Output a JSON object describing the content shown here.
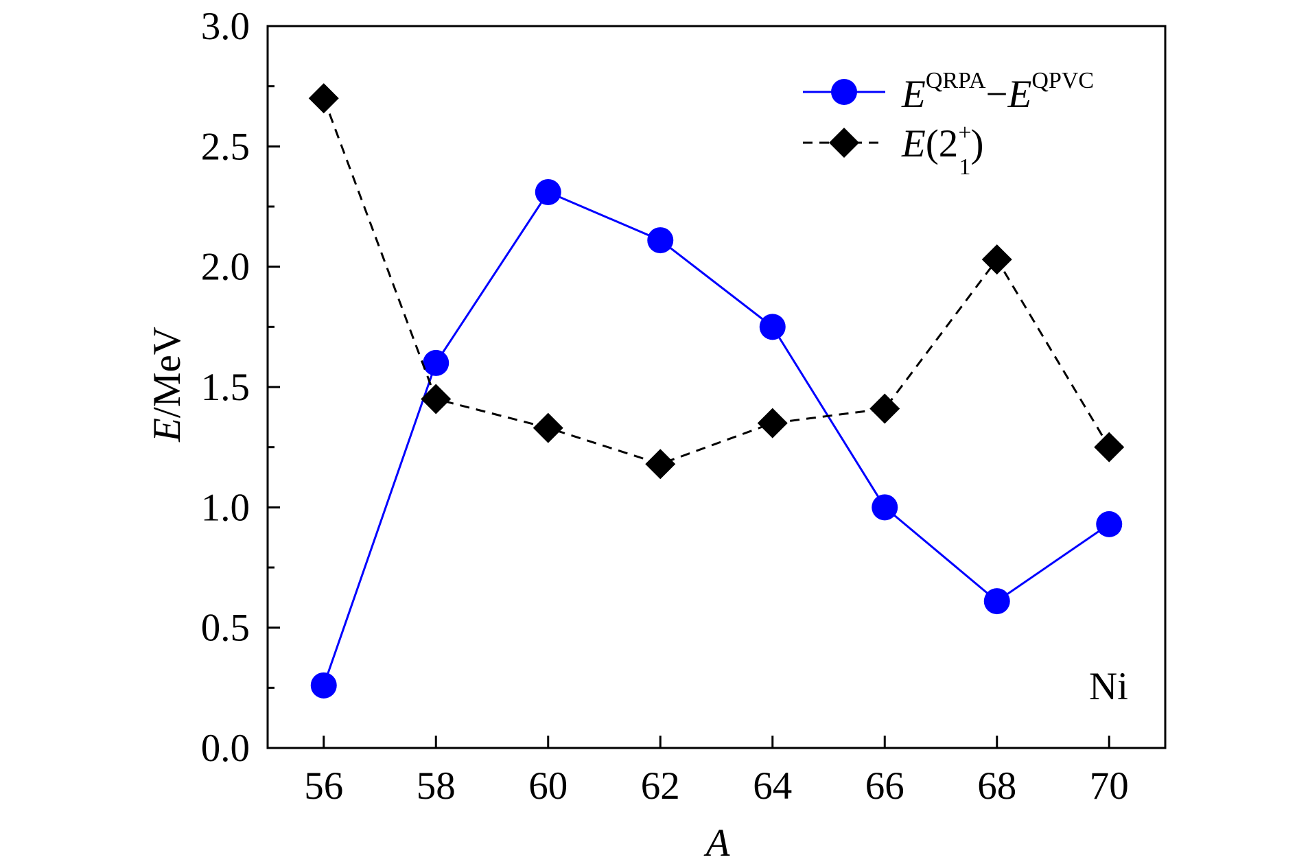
{
  "chart_data": {
    "type": "line",
    "x": [
      56,
      58,
      60,
      62,
      64,
      66,
      68,
      70
    ],
    "xlabel": "A",
    "ylabel_italic": "E",
    "ylabel_rest": "/MeV",
    "xlim": [
      55,
      71
    ],
    "ylim": [
      0.0,
      3.0
    ],
    "xticks": [
      "56",
      "58",
      "60",
      "62",
      "64",
      "66",
      "68",
      "70"
    ],
    "yticks": [
      "0.0",
      "0.5",
      "1.0",
      "1.5",
      "2.0",
      "2.5",
      "3.0"
    ],
    "ytick_values": [
      0.0,
      0.5,
      1.0,
      1.5,
      2.0,
      2.5,
      3.0
    ],
    "y_minor_tick_values": [
      0.25,
      0.75,
      1.25,
      1.75,
      2.25,
      2.75
    ],
    "grid": false,
    "legend_position": "top-right",
    "annotation": "Ni",
    "series": [
      {
        "legend_parts": [
          "E",
          "QRPA",
          "−",
          "E",
          "QPVC"
        ],
        "values": [
          0.26,
          1.6,
          2.31,
          2.11,
          1.75,
          1.0,
          0.61,
          0.93
        ],
        "color": "#0000ff",
        "marker": "circle",
        "line_style": "solid"
      },
      {
        "legend_parts": [
          "E",
          "(2",
          "+",
          "1",
          ")"
        ],
        "values": [
          2.7,
          1.45,
          1.33,
          1.18,
          1.35,
          1.41,
          2.03,
          1.25
        ],
        "color": "#000000",
        "marker": "diamond",
        "line_style": "dashed"
      }
    ]
  }
}
